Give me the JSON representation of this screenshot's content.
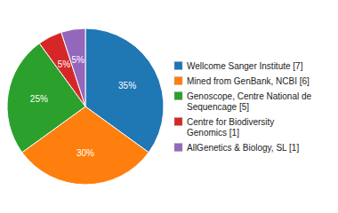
{
  "chart_data": {
    "type": "pie",
    "categories": [
      "Wellcome Sanger Institute [7]",
      "Mined from GenBank, NCBI [6]",
      "Genoscope, Centre National de\nSequencage [5]",
      "Centre for Biodiversity\nGenomics [1]",
      "AllGenetics & Biology, SL [1]"
    ],
    "values": [
      35,
      30,
      25,
      5,
      5
    ],
    "value_labels": [
      "35%",
      "30%",
      "25%",
      "5%",
      "5%"
    ],
    "data_labels": true,
    "legend": "right"
  }
}
